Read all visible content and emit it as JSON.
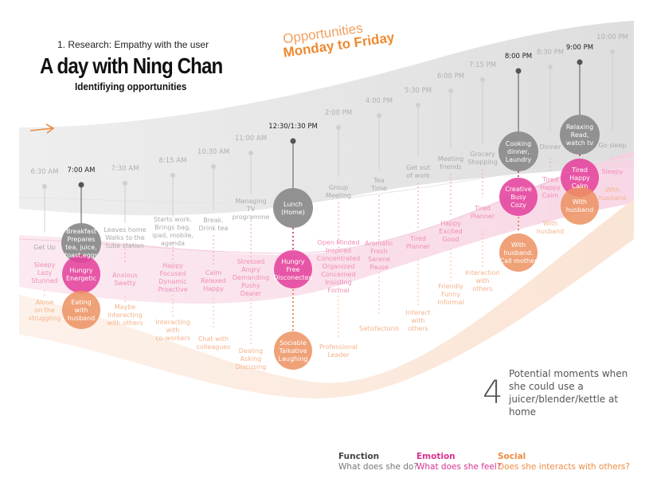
{
  "header": {
    "section": "1. Research: Empathy with the user",
    "title": "A day with Ning Chan",
    "subtitle": "Identifiying opportunities"
  },
  "opportunities": {
    "line1": "Opportunities",
    "line2": "Monday to Friday"
  },
  "summary": {
    "count": "4",
    "text": "Potential moments when she could use a juicer/blender/kettle at home"
  },
  "legend": [
    {
      "title": "Function",
      "question": "What does she do?"
    },
    {
      "title": "Emotion",
      "question": "What does she feel?"
    },
    {
      "title": "Social",
      "question": "Does she interacts with others?"
    }
  ],
  "colors": {
    "function": "#8c8c8c",
    "emotion": "#e4429c",
    "social": "#ec9060",
    "arrow": "#ec8c44"
  },
  "timeline": [
    {
      "time": "6:30 AM",
      "key": false,
      "function": [
        "Get Up"
      ],
      "emotion": [
        "Sleepy",
        "Lazy",
        "Stunned"
      ],
      "social": [
        "Alone",
        "on the",
        "struggling"
      ]
    },
    {
      "time": "7:00 AM",
      "key": true,
      "function": [
        "Breakfast",
        "Prepares",
        "tea, juice,",
        "toast,eggs"
      ],
      "emotion": [
        "Hungry",
        "Energetic"
      ],
      "social": [
        "Eating",
        "with",
        "husband"
      ]
    },
    {
      "time": "7:30 AM",
      "key": false,
      "function": [
        "Leaves home",
        "Walks to the",
        "tube station"
      ],
      "emotion": [
        "Anxious",
        "Swetty"
      ],
      "social": [
        "Maybe",
        "interacting",
        "with others"
      ]
    },
    {
      "time": "8:15 AM",
      "key": false,
      "function": [
        "Starts work.",
        "Brings bag,",
        "ipad, mobile,",
        "agenda"
      ],
      "emotion": [
        "Happy",
        "Focused",
        "Dynamic",
        "Proactive"
      ],
      "social": [
        "Interacting",
        "with",
        "co-workers"
      ]
    },
    {
      "time": "10:30 AM",
      "key": false,
      "function": [
        "Break.",
        "Drink tea"
      ],
      "emotion": [
        "Calm",
        "Relaxed",
        "Happy"
      ],
      "social": [
        "Chat with",
        "colleagues"
      ]
    },
    {
      "time": "11:00 AM",
      "key": false,
      "function": [
        "Managing",
        "TV",
        "programme"
      ],
      "emotion": [
        "Stressed",
        "Angry",
        "Demanding",
        "Pushy",
        "Dealer"
      ],
      "social": [
        "Dealing",
        "Asking",
        "Discusing"
      ]
    },
    {
      "time": "12:30/1:30 PM",
      "key": true,
      "function": [
        "Lunch",
        "(Home)"
      ],
      "emotion": [
        "Hungry",
        "Free",
        "Disconected"
      ],
      "social": [
        "Sociable",
        "Talkative",
        "Laughing"
      ]
    },
    {
      "time": "2:00 PM",
      "key": false,
      "function": [
        "Group",
        "Meeting"
      ],
      "emotion": [
        "Open Minded",
        "Inspired",
        "Concentrated",
        "Organized",
        "Concerned",
        "Insisting",
        "Formal"
      ],
      "social": [
        "Professional",
        "Leader"
      ]
    },
    {
      "time": "4:00 PM",
      "key": false,
      "function": [
        "Tea",
        "Time"
      ],
      "emotion": [
        "Aromatic",
        "Fresh",
        "Serene",
        "Pause"
      ],
      "social": [
        "Satisfactorio"
      ]
    },
    {
      "time": "5:30 PM",
      "key": false,
      "function": [
        "Get out",
        "of work"
      ],
      "emotion": [
        "Tired",
        "Planner"
      ],
      "social": [
        "Interact",
        "with",
        "others"
      ]
    },
    {
      "time": "6:00 PM",
      "key": false,
      "function": [
        "Meeting",
        "friends"
      ],
      "emotion": [
        "Happy",
        "Excited",
        "Good"
      ],
      "social": [
        "Friendly",
        "Funny",
        "Informal"
      ]
    },
    {
      "time": "7:15 PM",
      "key": false,
      "function": [
        "Grocery",
        "Shopping"
      ],
      "emotion": [
        "Tired",
        "Planner"
      ],
      "social": [
        "Interaction",
        "with",
        "others"
      ]
    },
    {
      "time": "8:00 PM",
      "key": true,
      "function": [
        "Cooking",
        "dinner,",
        "Laundry"
      ],
      "emotion": [
        "Creative",
        "Busy",
        "Cozy"
      ],
      "social": [
        "With",
        "husband.",
        "Call mother"
      ]
    },
    {
      "time": "8:30 PM",
      "key": false,
      "function": [
        "Dinner"
      ],
      "emotion": [
        "Tired",
        "Happy",
        "Calm"
      ],
      "social": [
        "With",
        "husband"
      ]
    },
    {
      "time": "9:00 PM",
      "key": true,
      "function": [
        "Relaxing",
        "Read,",
        "watch tv"
      ],
      "emotion": [
        "Tired",
        "Happy",
        "Calm"
      ],
      "social": [
        "With",
        "husband"
      ]
    },
    {
      "time": "10:00 PM",
      "key": false,
      "function": [
        "Go sleep"
      ],
      "emotion": [
        "Sleepy"
      ],
      "social": [
        "With",
        "husband"
      ]
    }
  ]
}
